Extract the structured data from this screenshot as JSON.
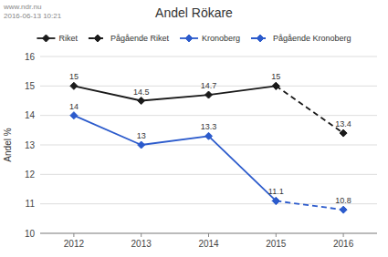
{
  "chart_data": {
    "type": "line",
    "title": "Andel Rökare",
    "annotations": [
      "www.ndr.nu",
      "2016-06-13 10:21"
    ],
    "y_label": "Andel %",
    "x": [
      2012,
      2013,
      2014,
      2015,
      2016
    ],
    "series": [
      {
        "name": "Riket",
        "color": "#1a1a1a",
        "line_style": "solid",
        "marker": "diamond",
        "values": [
          15,
          14.5,
          14.7,
          15,
          null
        ]
      },
      {
        "name": "Pågående Riket",
        "color": "#1a1a1a",
        "line_style": "dashed",
        "marker": "diamond",
        "values": [
          null,
          null,
          null,
          15,
          13.4
        ]
      },
      {
        "name": "Kronoberg",
        "color": "#2c5bcc",
        "line_style": "solid",
        "marker": "diamond",
        "values": [
          14,
          13,
          13.3,
          11.1,
          null
        ]
      },
      {
        "name": "Pågående Kronoberg",
        "color": "#2c5bcc",
        "line_style": "dashed",
        "marker": "diamond",
        "values": [
          null,
          null,
          null,
          11.1,
          10.8
        ]
      }
    ],
    "xlim": [
      2011.5,
      2016.5
    ],
    "xticks": [
      2012,
      2013,
      2014,
      2015,
      2016
    ],
    "ylim": [
      10,
      16
    ],
    "yticks": [
      10,
      11,
      12,
      13,
      14,
      15,
      16
    ],
    "grid": true,
    "legend": "top",
    "data_labels": true
  }
}
